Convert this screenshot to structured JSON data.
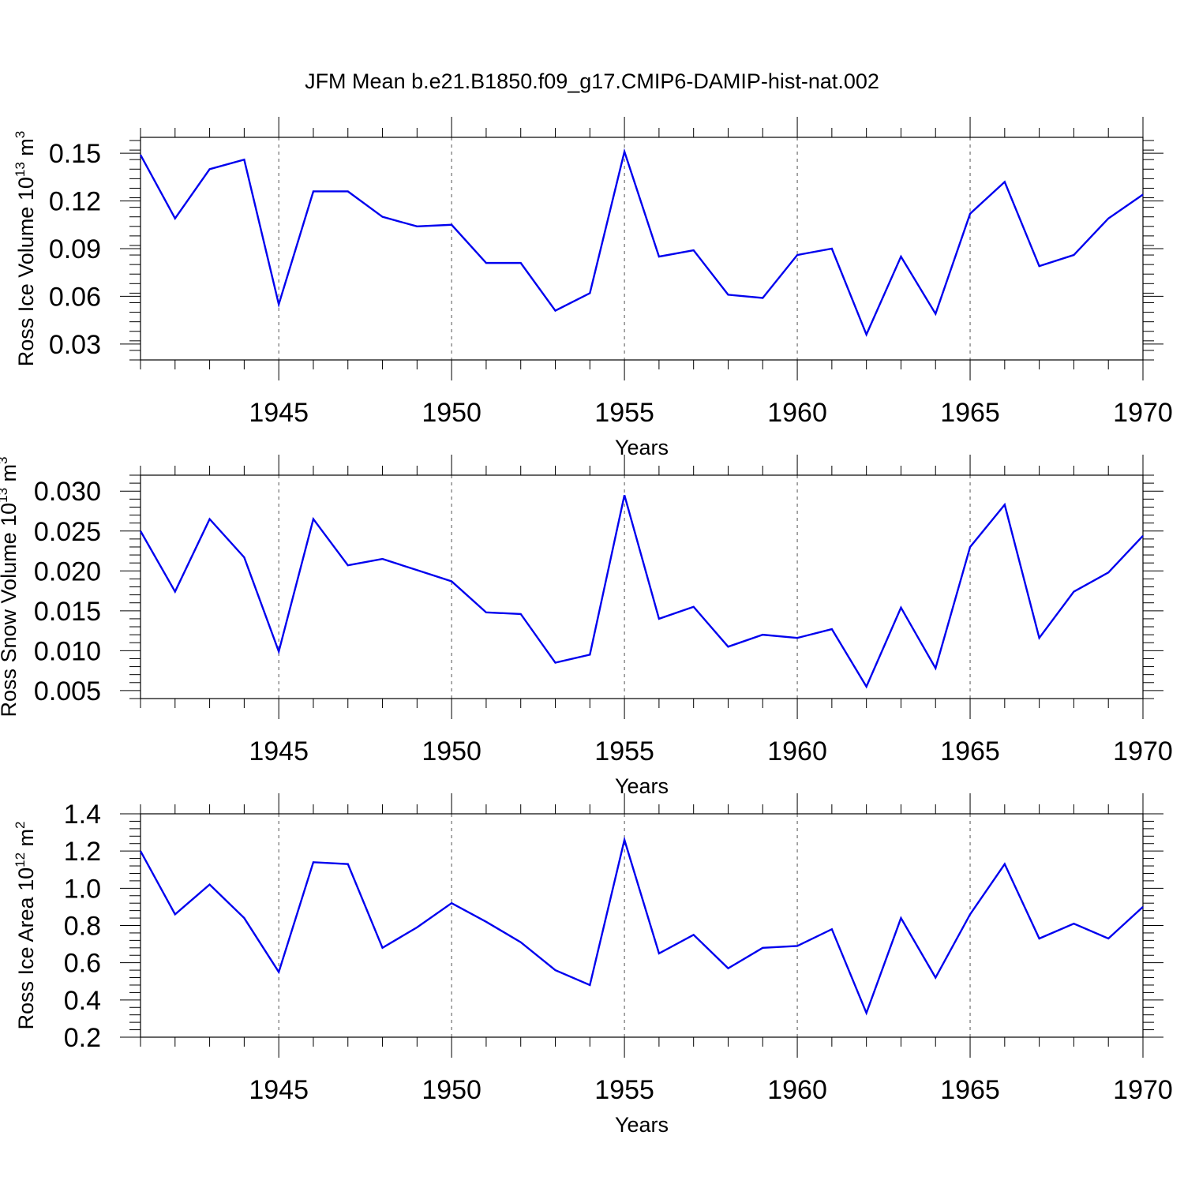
{
  "title": "JFM Mean b.e21.B1850.f09_g17.CMIP6-DAMIP-hist-nat.002",
  "chart_data": [
    {
      "type": "line",
      "ylabel": "Ross Ice Volume 10",
      "ylabel_exp": "13",
      "ylabel_unit": " m",
      "ylabel_unit_exp": "3",
      "xlabel": "Years",
      "xlim": [
        1941,
        1970
      ],
      "ylim": [
        0.02,
        0.16
      ],
      "yticks": [
        0.03,
        0.06,
        0.09,
        0.12,
        0.15
      ],
      "ytick_labels": [
        "0.03",
        "0.06",
        "0.09",
        "0.12",
        "0.15"
      ],
      "yminor_step": 0.006,
      "xticks": [
        1945,
        1950,
        1955,
        1960,
        1965,
        1970
      ],
      "xtick_labels": [
        "1945",
        "1950",
        "1955",
        "1960",
        "1965",
        "1970"
      ],
      "x": [
        1941,
        1942,
        1943,
        1944,
        1945,
        1946,
        1947,
        1948,
        1949,
        1950,
        1951,
        1952,
        1953,
        1954,
        1955,
        1956,
        1957,
        1958,
        1959,
        1960,
        1961,
        1962,
        1963,
        1964,
        1965,
        1966,
        1967,
        1968,
        1969,
        1970
      ],
      "series": [
        {
          "name": "Ross Ice Volume",
          "color": "#0000ee",
          "values": [
            0.149,
            0.109,
            0.14,
            0.146,
            0.055,
            0.126,
            0.126,
            0.11,
            0.104,
            0.105,
            0.081,
            0.081,
            0.051,
            0.062,
            0.151,
            0.085,
            0.089,
            0.061,
            0.059,
            0.086,
            0.09,
            0.036,
            0.085,
            0.049,
            0.112,
            0.132,
            0.079,
            0.086,
            0.109,
            0.124
          ]
        }
      ]
    },
    {
      "type": "line",
      "ylabel": "Ross Snow Volume 10",
      "ylabel_exp": "13",
      "ylabel_unit": " m",
      "ylabel_unit_exp": "3",
      "xlabel": "Years",
      "xlim": [
        1941,
        1970
      ],
      "ylim": [
        0.004,
        0.032
      ],
      "yticks": [
        0.005,
        0.01,
        0.015,
        0.02,
        0.025,
        0.03
      ],
      "ytick_labels": [
        "0.005",
        "0.010",
        "0.015",
        "0.020",
        "0.025",
        "0.030"
      ],
      "yminor_step": 0.001,
      "xticks": [
        1945,
        1950,
        1955,
        1960,
        1965,
        1970
      ],
      "xtick_labels": [
        "1945",
        "1950",
        "1955",
        "1960",
        "1965",
        "1970"
      ],
      "x": [
        1941,
        1942,
        1943,
        1944,
        1945,
        1946,
        1947,
        1948,
        1949,
        1950,
        1951,
        1952,
        1953,
        1954,
        1955,
        1956,
        1957,
        1958,
        1959,
        1960,
        1961,
        1962,
        1963,
        1964,
        1965,
        1966,
        1967,
        1968,
        1969,
        1970
      ],
      "series": [
        {
          "name": "Ross Snow Volume",
          "color": "#0000ee",
          "values": [
            0.025,
            0.0174,
            0.0265,
            0.0217,
            0.0099,
            0.0265,
            0.0207,
            0.0215,
            0.0201,
            0.0187,
            0.0148,
            0.0146,
            0.0085,
            0.0095,
            0.0295,
            0.014,
            0.0155,
            0.0105,
            0.012,
            0.0116,
            0.0127,
            0.0055,
            0.0154,
            0.0078,
            0.023,
            0.0283,
            0.0116,
            0.0174,
            0.0198,
            0.0244
          ]
        }
      ]
    },
    {
      "type": "line",
      "ylabel": "Ross Ice Area 10",
      "ylabel_exp": "12",
      "ylabel_unit": " m",
      "ylabel_unit_exp": "2",
      "xlabel": "Years",
      "xlim": [
        1941,
        1970
      ],
      "ylim": [
        0.2,
        1.4
      ],
      "yticks": [
        0.2,
        0.4,
        0.6,
        0.8,
        1.0,
        1.2,
        1.4
      ],
      "ytick_labels": [
        "0.2",
        "0.4",
        "0.6",
        "0.8",
        "1.0",
        "1.2",
        "1.4"
      ],
      "yminor_step": 0.04,
      "xticks": [
        1945,
        1950,
        1955,
        1960,
        1965,
        1970
      ],
      "xtick_labels": [
        "1945",
        "1950",
        "1955",
        "1960",
        "1965",
        "1970"
      ],
      "x": [
        1941,
        1942,
        1943,
        1944,
        1945,
        1946,
        1947,
        1948,
        1949,
        1950,
        1951,
        1952,
        1953,
        1954,
        1955,
        1956,
        1957,
        1958,
        1959,
        1960,
        1961,
        1962,
        1963,
        1964,
        1965,
        1966,
        1967,
        1968,
        1969,
        1970
      ],
      "series": [
        {
          "name": "Ross Ice Area",
          "color": "#0000ee",
          "values": [
            1.2,
            0.86,
            1.02,
            0.84,
            0.55,
            1.14,
            1.13,
            0.68,
            0.79,
            0.92,
            0.82,
            0.71,
            0.56,
            0.48,
            1.26,
            0.65,
            0.75,
            0.57,
            0.68,
            0.69,
            0.78,
            0.33,
            0.84,
            0.52,
            0.86,
            1.13,
            0.73,
            0.81,
            0.73,
            0.9
          ]
        }
      ]
    }
  ]
}
